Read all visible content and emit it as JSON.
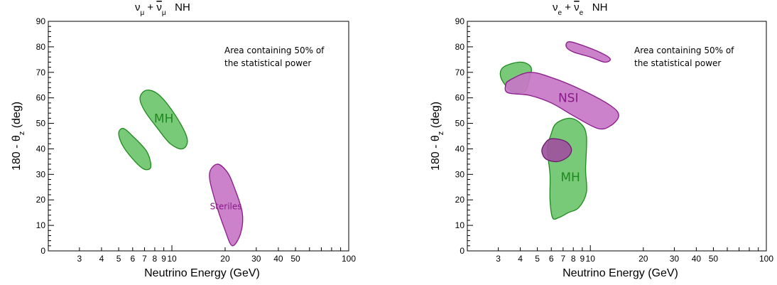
{
  "chart_data": [
    {
      "type": "contour",
      "title": "νμ + ν̄μ   NH",
      "title_parts": {
        "main": "ν",
        "sub1": "μ",
        "plus": " + ",
        "bar": "ν",
        "sub2": "μ",
        "suffix": "NH"
      },
      "xlabel": "Neutrino Energy (GeV)",
      "ylabel": "180 - θz (deg)",
      "ylabel_parts": {
        "pre": "180 - θ",
        "sub": "z",
        "post": " (deg)"
      },
      "xscale": "log",
      "xlim": [
        2,
        100
      ],
      "ylim": [
        0,
        90
      ],
      "xticks_labeled": [
        3,
        4,
        5,
        6,
        7,
        8,
        9,
        10,
        20,
        30,
        40,
        50,
        100
      ],
      "xtick_labels": [
        "3",
        "4",
        "5",
        "6",
        "7",
        "8",
        "9",
        "10",
        "20",
        "30",
        "40",
        "50",
        "100"
      ],
      "yticks": [
        0,
        10,
        20,
        30,
        40,
        50,
        60,
        70,
        80,
        90
      ],
      "annotation": [
        "Area containing 50% of",
        "the statistical power"
      ],
      "regions": [
        {
          "label": "MH",
          "color": "#6cc46c",
          "stroke": "#1e8a1e",
          "points": [
            [
              7.2,
              63
            ],
            [
              8.5,
              61
            ],
            [
              10.5,
              53
            ],
            [
              12.2,
              44
            ],
            [
              11.5,
              40
            ],
            [
              9.8,
              42
            ],
            [
              8.3,
              48
            ],
            [
              7,
              55
            ],
            [
              6.6,
              60
            ]
          ]
        },
        {
          "label": "",
          "color": "#6cc46c",
          "stroke": "#1e8a1e",
          "points": [
            [
              5.3,
              48
            ],
            [
              6,
              45
            ],
            [
              7.2,
              39
            ],
            [
              7.6,
              33
            ],
            [
              7,
              32
            ],
            [
              6.2,
              35
            ],
            [
              5.3,
              41
            ],
            [
              5,
              46
            ]
          ]
        },
        {
          "label": "Steriles",
          "color": "#c777c7",
          "stroke": "#8a1a8a",
          "points": [
            [
              18,
              34
            ],
            [
              20.5,
              31
            ],
            [
              22.5,
              25
            ],
            [
              25,
              15
            ],
            [
              24.5,
              7
            ],
            [
              22,
              2
            ],
            [
              20,
              8
            ],
            [
              17.5,
              20
            ],
            [
              16.3,
              30
            ]
          ]
        }
      ],
      "labels": [
        {
          "text": "MH",
          "at": [
            9.0,
            52
          ],
          "size": 17,
          "color": "green"
        },
        {
          "text": "Steriles",
          "at": [
            20.2,
            18
          ],
          "size": 12,
          "color": "purple"
        }
      ]
    },
    {
      "type": "contour",
      "title": "νe + ν̄e   NH",
      "title_parts": {
        "main": "ν",
        "sub1": "e",
        "plus": " + ",
        "bar": "ν",
        "sub2": "e",
        "suffix": "NH"
      },
      "xlabel": "Neutrino Energy (GeV)",
      "ylabel": "180 - θz (deg)",
      "ylabel_parts": {
        "pre": "180 - θ",
        "sub": "z",
        "post": " (deg)"
      },
      "xscale": "log",
      "xlim": [
        2,
        100
      ],
      "ylim": [
        0,
        90
      ],
      "xticks_labeled": [
        3,
        4,
        5,
        6,
        7,
        8,
        9,
        10,
        20,
        30,
        40,
        50,
        100
      ],
      "xtick_labels": [
        "3",
        "4",
        "5",
        "6",
        "7",
        "8",
        "9",
        "10",
        "20",
        "30",
        "40",
        "50",
        "100"
      ],
      "yticks": [
        0,
        10,
        20,
        30,
        40,
        50,
        60,
        70,
        80,
        90
      ],
      "annotation": [
        "Area containing 50% of",
        "the statistical power"
      ],
      "regions": [
        {
          "label": "",
          "color": "#c777c7",
          "stroke": "#8a1a8a",
          "points": [
            [
              7.6,
              82
            ],
            [
              9.5,
              80
            ],
            [
              12,
              77
            ],
            [
              13,
              75
            ],
            [
              12,
              74
            ],
            [
              10,
              76
            ],
            [
              8,
              78
            ],
            [
              7.3,
              80
            ]
          ]
        },
        {
          "label": "",
          "color": "#6cc46c",
          "stroke": "#1e8a1e",
          "points": [
            [
              3.2,
              72
            ],
            [
              4,
              74
            ],
            [
              4.6,
              72
            ],
            [
              4.5,
              67
            ],
            [
              4.3,
              63
            ],
            [
              4,
              62
            ],
            [
              3.5,
              63
            ],
            [
              3.1,
              68
            ]
          ]
        },
        {
          "label": "NSI",
          "color": "#c777c7",
          "stroke": "#8a1a8a",
          "points": [
            [
              3.5,
              67
            ],
            [
              4.5,
              70
            ],
            [
              6,
              68
            ],
            [
              9,
              63
            ],
            [
              13,
              57
            ],
            [
              14.5,
              53
            ],
            [
              13,
              49
            ],
            [
              11,
              48
            ],
            [
              8,
              53
            ],
            [
              6,
              58
            ],
            [
              4.5,
              61
            ],
            [
              3.4,
              62
            ],
            [
              3.3,
              65
            ]
          ]
        },
        {
          "label": "MH",
          "color": "#6cc46c",
          "stroke": "#1e8a1e",
          "points": [
            [
              6.4,
              50
            ],
            [
              7.6,
              52
            ],
            [
              8.8,
              50
            ],
            [
              9.5,
              45
            ],
            [
              9.4,
              32
            ],
            [
              9.5,
              23
            ],
            [
              8.6,
              17
            ],
            [
              7.5,
              15
            ],
            [
              6.6,
              13
            ],
            [
              6.1,
              13
            ],
            [
              5.9,
              20
            ],
            [
              5.9,
              30
            ],
            [
              5.7,
              40
            ],
            [
              6,
              46
            ]
          ]
        },
        {
          "label": "",
          "color": "#a0529f",
          "stroke": "#6a1a6a",
          "points": [
            [
              6,
              44
            ],
            [
              7.2,
              43
            ],
            [
              7.8,
              40
            ],
            [
              7.5,
              37
            ],
            [
              6.5,
              35
            ],
            [
              5.6,
              36
            ],
            [
              5.3,
              39
            ],
            [
              5.5,
              42
            ]
          ]
        }
      ],
      "labels": [
        {
          "text": "NSI",
          "at": [
            7.5,
            60
          ],
          "size": 17,
          "color": "purple"
        },
        {
          "text": "MH",
          "at": [
            7.7,
            29
          ],
          "size": 17,
          "color": "green"
        }
      ]
    }
  ]
}
